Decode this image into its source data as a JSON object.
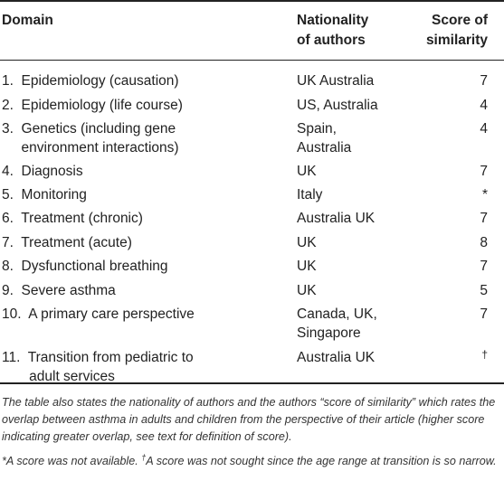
{
  "headers": {
    "domain": "Domain",
    "nationality_l1": "Nationality",
    "nationality_l2": "of authors",
    "score_l1": "Score of",
    "score_l2": "similarity"
  },
  "rows": [
    {
      "domain": "1.  Epidemiology (causation)",
      "nationality": "UK Australia",
      "score": "7"
    },
    {
      "domain": "2.  Epidemiology (life course)",
      "nationality": "US, Australia",
      "score": "4"
    },
    {
      "domain": "3.  Genetics (including gene\n     environment interactions)",
      "nationality": "Spain,\nAustralia",
      "score": "4"
    },
    {
      "domain": "4.  Diagnosis",
      "nationality": "UK",
      "score": "7"
    },
    {
      "domain": "5.  Monitoring",
      "nationality": "Italy",
      "score": "*"
    },
    {
      "domain": "6.  Treatment (chronic)",
      "nationality": "Australia UK",
      "score": "7"
    },
    {
      "domain": "7.  Treatment (acute)",
      "nationality": "UK",
      "score": "8"
    },
    {
      "domain": "8.  Dysfunctional breathing",
      "nationality": "UK",
      "score": "7"
    },
    {
      "domain": "9.  Severe asthma",
      "nationality": "UK",
      "score": "5"
    },
    {
      "domain": "10.  A primary care perspective",
      "nationality": "Canada, UK,\nSingapore",
      "score": "7"
    },
    {
      "domain": "11.  Transition from pediatric to\n       adult services",
      "nationality": "Australia UK",
      "score": "†"
    }
  ],
  "footnote": {
    "text1": "The table also states the nationality of authors and the authors “score of similarity” which rates the overlap between asthma in adults and children from the perspective of their article (higher score indicating greater overlap, see text for definition of score).",
    "text2_a": "*A score was not available. ",
    "text2_dagger": "†",
    "text2_b": "A score was not sought since the age range at transition is so narrow."
  }
}
